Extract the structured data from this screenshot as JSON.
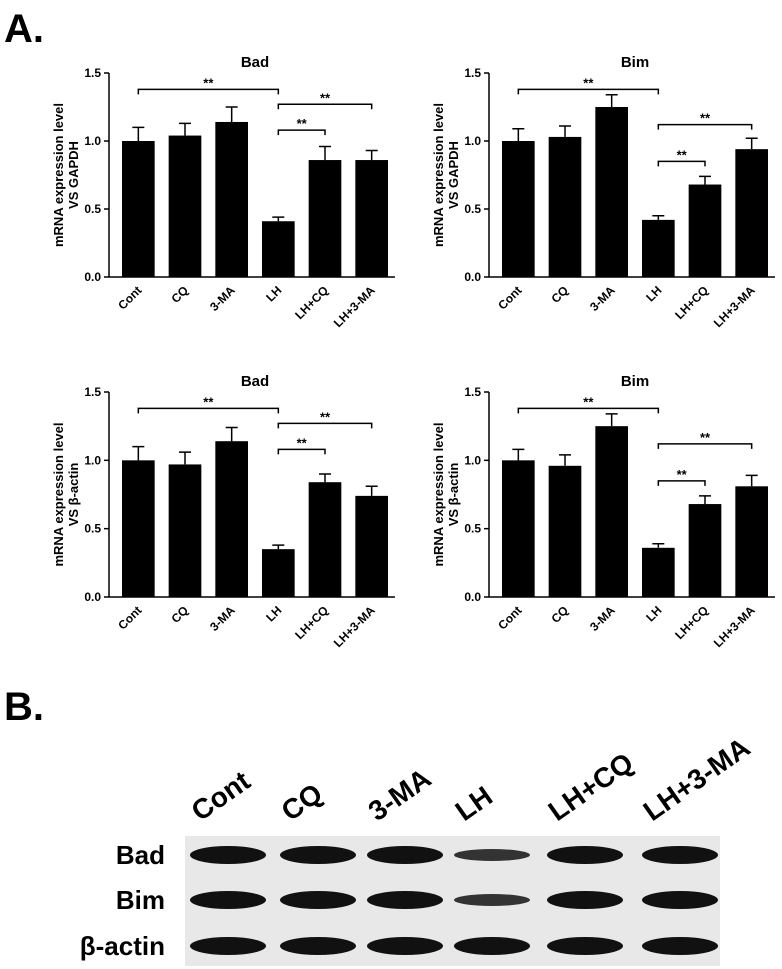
{
  "panel_labels": [
    "A.",
    "B."
  ],
  "chart_data": [
    {
      "type": "bar",
      "title": "Bad",
      "ylabel": [
        "mRNA expression level",
        "VS GAPDH"
      ],
      "categories": [
        "Cont",
        "CQ",
        "3-MA",
        "LH",
        "LH+CQ",
        "LH+3-MA"
      ],
      "values": [
        1.0,
        1.04,
        1.14,
        0.41,
        0.86,
        0.86
      ],
      "errors": [
        0.1,
        0.09,
        0.11,
        0.03,
        0.1,
        0.07
      ],
      "color": "#000000",
      "ylim": [
        0,
        1.5
      ],
      "yticks": [
        {
          "value": 0,
          "label": "0.0"
        },
        {
          "value": 0.5,
          "label": "0.5"
        },
        {
          "value": 1,
          "label": "1.0"
        },
        {
          "value": 1.5,
          "label": "1.5"
        }
      ],
      "brackets": [
        {
          "text": "**",
          "from": "Cont",
          "to": "LH",
          "y": 1.38
        },
        {
          "text": "**",
          "from": "LH",
          "to": "LH+3-MA",
          "y": 1.27
        },
        {
          "text": "**",
          "from": "LH",
          "to": "LH+CQ",
          "y": 1.08
        }
      ]
    },
    {
      "type": "bar",
      "title": "Bim",
      "ylabel": [
        "mRNA expression level",
        "VS GAPDH"
      ],
      "categories": [
        "Cont",
        "CQ",
        "3-MA",
        "LH",
        "LH+CQ",
        "LH+3-MA"
      ],
      "values": [
        1.0,
        1.03,
        1.25,
        0.42,
        0.68,
        0.94
      ],
      "errors": [
        0.09,
        0.08,
        0.09,
        0.03,
        0.06,
        0.08
      ],
      "color": "#000000",
      "ylim": [
        0,
        1.5
      ],
      "yticks": [
        {
          "value": 0,
          "label": "0.0"
        },
        {
          "value": 0.5,
          "label": "0.5"
        },
        {
          "value": 1,
          "label": "1.0"
        },
        {
          "value": 1.5,
          "label": "1.5"
        }
      ],
      "brackets": [
        {
          "text": "**",
          "from": "Cont",
          "to": "LH",
          "y": 1.38
        },
        {
          "text": "**",
          "from": "LH",
          "to": "LH+3-MA",
          "y": 1.12
        },
        {
          "text": "**",
          "from": "LH",
          "to": "LH+CQ",
          "y": 0.85
        }
      ]
    },
    {
      "type": "bar",
      "title": "Bad",
      "ylabel": [
        "mRNA expression level",
        "VS β-actin"
      ],
      "categories": [
        "Cont",
        "CQ",
        "3-MA",
        "LH",
        "LH+CQ",
        "LH+3-MA"
      ],
      "values": [
        1.0,
        0.97,
        1.14,
        0.35,
        0.84,
        0.74
      ],
      "errors": [
        0.1,
        0.09,
        0.1,
        0.03,
        0.06,
        0.07
      ],
      "color": "#000000",
      "ylim": [
        0,
        1.5
      ],
      "yticks": [
        {
          "value": 0,
          "label": "0.0"
        },
        {
          "value": 0.5,
          "label": "0.5"
        },
        {
          "value": 1,
          "label": "1.0"
        },
        {
          "value": 1.5,
          "label": "1.5"
        }
      ],
      "brackets": [
        {
          "text": "**",
          "from": "Cont",
          "to": "LH",
          "y": 1.38
        },
        {
          "text": "**",
          "from": "LH",
          "to": "LH+3-MA",
          "y": 1.27
        },
        {
          "text": "**",
          "from": "LH",
          "to": "LH+CQ",
          "y": 1.08
        }
      ]
    },
    {
      "type": "bar",
      "title": "Bim",
      "ylabel": [
        "mRNA expression level",
        "VS β-actin"
      ],
      "categories": [
        "Cont",
        "CQ",
        "3-MA",
        "LH",
        "LH+CQ",
        "LH+3-MA"
      ],
      "values": [
        1.0,
        0.96,
        1.25,
        0.36,
        0.68,
        0.81
      ],
      "errors": [
        0.08,
        0.08,
        0.09,
        0.03,
        0.06,
        0.08
      ],
      "color": "#000000",
      "ylim": [
        0,
        1.5
      ],
      "yticks": [
        {
          "value": 0,
          "label": "0.0"
        },
        {
          "value": 0.5,
          "label": "0.5"
        },
        {
          "value": 1,
          "label": "1.0"
        },
        {
          "value": 1.5,
          "label": "1.5"
        }
      ],
      "brackets": [
        {
          "text": "**",
          "from": "Cont",
          "to": "LH",
          "y": 1.38
        },
        {
          "text": "**",
          "from": "LH",
          "to": "LH+3-MA",
          "y": 1.12
        },
        {
          "text": "**",
          "from": "LH",
          "to": "LH+CQ",
          "y": 0.85
        }
      ]
    }
  ],
  "blot": {
    "lanes": [
      "Cont",
      "CQ",
      "3-MA",
      "LH",
      "LH+CQ",
      "LH+3-MA"
    ],
    "rows": [
      "Bad",
      "Bim",
      "β-actin"
    ]
  }
}
